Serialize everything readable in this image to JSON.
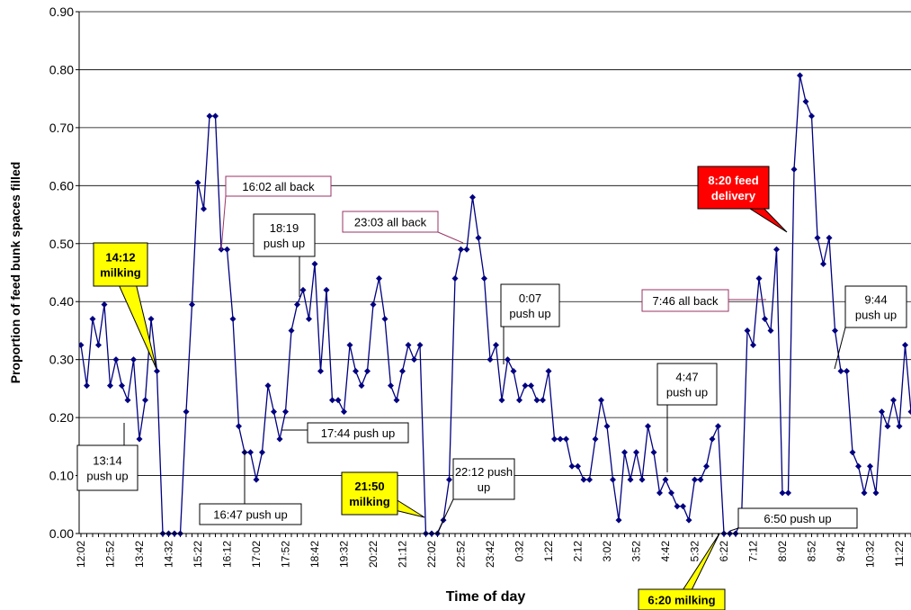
{
  "chart_data": {
    "type": "line",
    "xlabel": "Time of day",
    "ylabel": "Proportion of feed bunk spaces filled",
    "ylim": [
      0,
      0.9
    ],
    "yticks": [
      {
        "value": 0,
        "label": "0.00"
      },
      {
        "value": 0.1,
        "label": "0.10"
      },
      {
        "value": 0.2,
        "label": "0.20"
      },
      {
        "value": 0.3,
        "label": "0.30"
      },
      {
        "value": 0.4,
        "label": "0.40"
      },
      {
        "value": 0.5,
        "label": "0.50"
      },
      {
        "value": 0.6,
        "label": "0.60"
      },
      {
        "value": 0.7,
        "label": "0.70"
      },
      {
        "value": 0.8,
        "label": "0.80"
      },
      {
        "value": 0.9,
        "label": "0.90"
      }
    ],
    "grid": true,
    "categories": [
      "12:02",
      null,
      null,
      null,
      null,
      "12:52",
      null,
      null,
      null,
      null,
      "13:42",
      null,
      null,
      null,
      null,
      "14:32",
      null,
      null,
      null,
      null,
      "15:22",
      null,
      null,
      null,
      null,
      "16:12",
      null,
      null,
      null,
      null,
      "17:02",
      null,
      null,
      null,
      null,
      "17:52",
      null,
      null,
      null,
      null,
      "18:42",
      null,
      null,
      null,
      null,
      "19:32",
      null,
      null,
      null,
      null,
      "20:22",
      null,
      null,
      null,
      null,
      "21:12",
      null,
      null,
      null,
      null,
      "22:02",
      null,
      null,
      null,
      null,
      "22:52",
      null,
      null,
      null,
      null,
      "23:42",
      null,
      null,
      null,
      null,
      "0:32",
      null,
      null,
      null,
      null,
      "1:22",
      null,
      null,
      null,
      null,
      "2:12",
      null,
      null,
      null,
      null,
      "3:02",
      null,
      null,
      null,
      null,
      "3:52",
      null,
      null,
      null,
      null,
      "4:42",
      null,
      null,
      null,
      null,
      "5:32",
      null,
      null,
      null,
      null,
      "6:22",
      null,
      null,
      null,
      null,
      "7:12",
      null,
      null,
      null,
      null,
      "8:02",
      null,
      null,
      null,
      null,
      "8:52",
      null,
      null,
      null,
      null,
      "9:42",
      null,
      null,
      null,
      null,
      "10:32",
      null,
      null,
      null,
      null,
      "11:22",
      null,
      null
    ],
    "series": [
      {
        "name": "Proportion filled",
        "color": "#000080",
        "values": [
          0.325,
          0.255,
          0.37,
          0.325,
          0.395,
          0.255,
          0.3,
          0.255,
          0.23,
          0.3,
          0.163,
          0.23,
          0.37,
          0.28,
          0,
          0,
          0,
          0,
          0.21,
          0.395,
          0.605,
          0.56,
          0.72,
          0.72,
          0.49,
          0.49,
          0.37,
          0.185,
          0.14,
          0.14,
          0.093,
          0.14,
          0.255,
          0.21,
          0.163,
          0.21,
          0.35,
          0.395,
          0.42,
          0.37,
          0.465,
          0.28,
          0.42,
          0.23,
          0.23,
          0.21,
          0.325,
          0.28,
          0.255,
          0.28,
          0.395,
          0.44,
          0.37,
          0.255,
          0.23,
          0.28,
          0.325,
          0.3,
          0.325,
          0,
          0,
          0,
          0.023,
          0.093,
          0.44,
          0.49,
          0.49,
          0.58,
          0.51,
          0.44,
          0.3,
          0.325,
          0.23,
          0.3,
          0.28,
          0.23,
          0.255,
          0.255,
          0.23,
          0.23,
          0.28,
          0.163,
          0.163,
          0.163,
          0.116,
          0.116,
          0.093,
          0.093,
          0.163,
          0.23,
          0.185,
          0.093,
          0.023,
          0.14,
          0.093,
          0.14,
          0.093,
          0.185,
          0.14,
          0.07,
          0.093,
          0.07,
          0.047,
          0.047,
          0.023,
          0.093,
          0.093,
          0.116,
          0.163,
          0.185,
          0,
          0,
          0,
          0.023,
          0.35,
          0.325,
          0.44,
          0.37,
          0.35,
          0.49,
          0.07,
          0.07,
          0.628,
          0.79,
          0.745,
          0.72,
          0.51,
          0.465,
          0.51,
          0.35,
          0.28,
          0.28,
          0.14,
          0.116,
          0.07,
          0.116,
          0.07,
          0.21,
          0.185,
          0.23,
          0.185,
          0.325,
          0.21
        ]
      }
    ],
    "annotations": [
      {
        "lines": [
          "14:12",
          "milking"
        ],
        "style": "milking"
      },
      {
        "lines": [
          "13:14",
          "push up"
        ],
        "style": "plain"
      },
      {
        "lines": [
          "16:02 all back"
        ],
        "style": "back"
      },
      {
        "lines": [
          "18:19",
          "push up"
        ],
        "style": "plain"
      },
      {
        "lines": [
          "16:47 push up"
        ],
        "style": "plain"
      },
      {
        "lines": [
          "17:44 push up"
        ],
        "style": "plain"
      },
      {
        "lines": [
          "23:03 all back"
        ],
        "style": "back"
      },
      {
        "lines": [
          "0:07",
          "push up"
        ],
        "style": "plain"
      },
      {
        "lines": [
          "21:50",
          "milking"
        ],
        "style": "milking"
      },
      {
        "lines": [
          "22:12 push",
          "up"
        ],
        "style": "plain"
      },
      {
        "lines": [
          "4:47",
          "push up"
        ],
        "style": "plain"
      },
      {
        "lines": [
          "8:20 feed",
          "delivery"
        ],
        "style": "feed"
      },
      {
        "lines": [
          "7:46 all back"
        ],
        "style": "back"
      },
      {
        "lines": [
          "9:44",
          "push up"
        ],
        "style": "plain"
      },
      {
        "lines": [
          "6:50 push up"
        ],
        "style": "plain"
      },
      {
        "lines": [
          "6:20 milking"
        ],
        "style": "milking"
      }
    ]
  }
}
